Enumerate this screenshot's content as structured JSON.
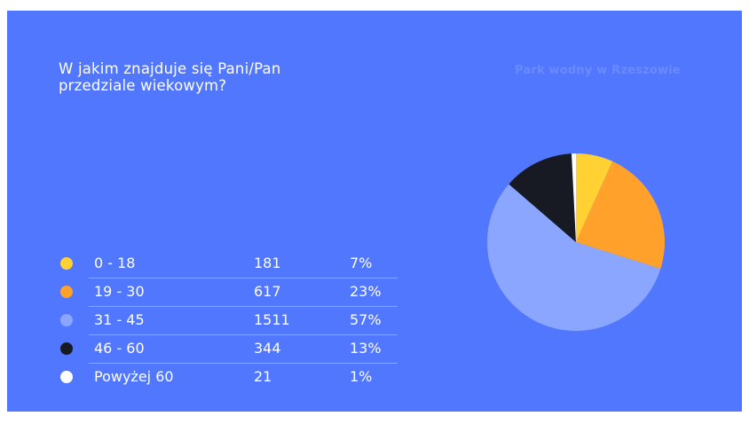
{
  "question": "W jakim znajduje się Pani/Pan przedziale wiekowym?",
  "brand": "Park wodny w Rzeszowie",
  "colors": {
    "background": "#5277ff",
    "series": [
      "#ffd132",
      "#ffa12b",
      "#8aa6ff",
      "#171923",
      "#ffffff"
    ]
  },
  "legend": [
    {
      "label": "0 - 18",
      "count": "181",
      "percent": "7%",
      "color": "#ffd132"
    },
    {
      "label": "19 - 30",
      "count": "617",
      "percent": "23%",
      "color": "#ffa12b"
    },
    {
      "label": "31 - 45",
      "count": "1511",
      "percent": "57%",
      "color": "#8aa6ff"
    },
    {
      "label": "46 - 60",
      "count": "344",
      "percent": "13%",
      "color": "#171923"
    },
    {
      "label": "Powyżej 60",
      "count": "21",
      "percent": "1%",
      "color": "#ffffff"
    }
  ],
  "chart_data": {
    "type": "pie",
    "categories": [
      "0 - 18",
      "19 - 30",
      "31 - 45",
      "46 - 60",
      "Powyżej 60"
    ],
    "values": [
      181,
      617,
      1511,
      344,
      21
    ],
    "percentages": [
      7,
      23,
      57,
      13,
      1
    ],
    "title": "W jakim znajduje się Pani/Pan przedziale wiekowym?",
    "legend_position": "left"
  }
}
